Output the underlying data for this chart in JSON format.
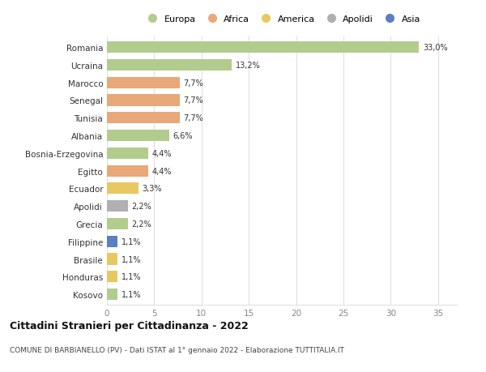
{
  "countries": [
    "Romania",
    "Ucraina",
    "Marocco",
    "Senegal",
    "Tunisia",
    "Albania",
    "Bosnia-Erzegovina",
    "Egitto",
    "Ecuador",
    "Apolidi",
    "Grecia",
    "Filippine",
    "Brasile",
    "Honduras",
    "Kosovo"
  ],
  "values": [
    33.0,
    13.2,
    7.7,
    7.7,
    7.7,
    6.6,
    4.4,
    4.4,
    3.3,
    2.2,
    2.2,
    1.1,
    1.1,
    1.1,
    1.1
  ],
  "labels": [
    "33,0%",
    "13,2%",
    "7,7%",
    "7,7%",
    "7,7%",
    "6,6%",
    "4,4%",
    "4,4%",
    "3,3%",
    "2,2%",
    "2,2%",
    "1,1%",
    "1,1%",
    "1,1%",
    "1,1%"
  ],
  "colors": [
    "#b2cc8d",
    "#b2cc8d",
    "#e8a878",
    "#e8a878",
    "#e8a878",
    "#b2cc8d",
    "#b2cc8d",
    "#e8a878",
    "#e8c860",
    "#b0b0b0",
    "#b2cc8d",
    "#5b7fc4",
    "#e8c860",
    "#e8c860",
    "#b2cc8d"
  ],
  "categories": [
    "Europa",
    "Africa",
    "America",
    "Apolidi",
    "Asia"
  ],
  "legend_colors": [
    "#b2cc8d",
    "#e8a878",
    "#e8c860",
    "#b0b0b0",
    "#5b7fc4"
  ],
  "title": "Cittadini Stranieri per Cittadinanza - 2022",
  "subtitle": "COMUNE DI BARBIANELLO (PV) - Dati ISTAT al 1° gennaio 2022 - Elaborazione TUTTITALIA.IT",
  "xlim": [
    0,
    37
  ],
  "xticks": [
    0,
    5,
    10,
    15,
    20,
    25,
    30,
    35
  ],
  "bg_color": "#ffffff",
  "grid_color": "#e0e0e0",
  "bar_height": 0.65
}
